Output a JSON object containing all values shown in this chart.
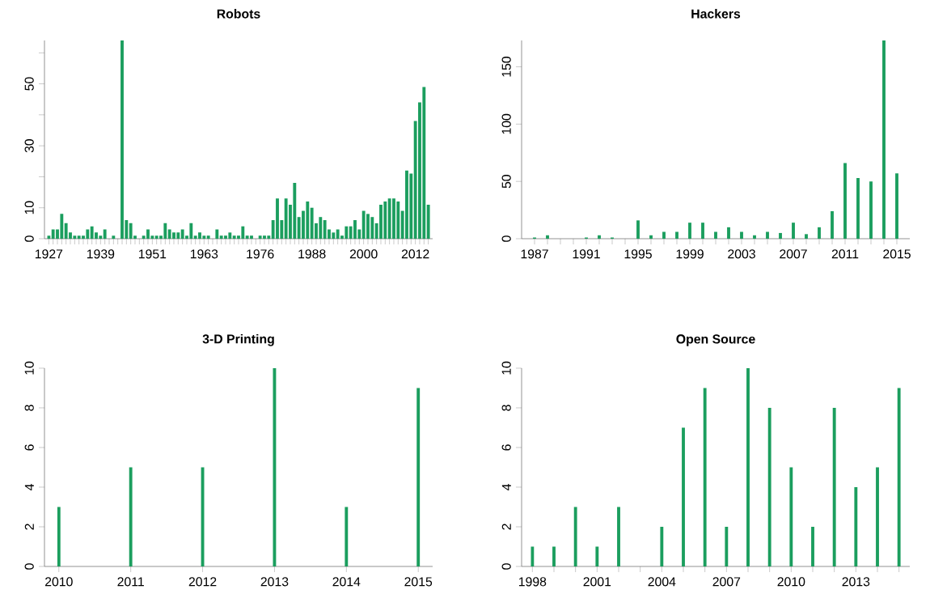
{
  "chart_data": [
    {
      "type": "bar",
      "title": "Robots",
      "color": "#1b9e5e",
      "x": [
        1927,
        1928,
        1929,
        1930,
        1931,
        1932,
        1933,
        1934,
        1935,
        1936,
        1937,
        1938,
        1939,
        1940,
        1942,
        1944,
        1945,
        1946,
        1947,
        1949,
        1950,
        1951,
        1952,
        1953,
        1954,
        1955,
        1956,
        1957,
        1958,
        1959,
        1960,
        1961,
        1962,
        1963,
        1964,
        1966,
        1967,
        1968,
        1969,
        1970,
        1971,
        1972,
        1973,
        1974,
        1976,
        1977,
        1978,
        1979,
        1980,
        1981,
        1982,
        1983,
        1984,
        1985,
        1986,
        1987,
        1988,
        1989,
        1990,
        1991,
        1992,
        1993,
        1994,
        1995,
        1996,
        1997,
        1998,
        1999,
        2000,
        2001,
        2002,
        2003,
        2004,
        2005,
        2006,
        2007,
        2008,
        2009,
        2010,
        2011,
        2012,
        2013,
        2014,
        2015
      ],
      "values": [
        1,
        3,
        3,
        8,
        5,
        2,
        1,
        1,
        1,
        3,
        4,
        2,
        1,
        3,
        1,
        64,
        6,
        5,
        1,
        1,
        3,
        1,
        1,
        1,
        5,
        3,
        2,
        2,
        3,
        1,
        5,
        1,
        2,
        1,
        1,
        3,
        1,
        1,
        2,
        1,
        1,
        4,
        1,
        1,
        1,
        1,
        1,
        6,
        13,
        6,
        13,
        11,
        18,
        7,
        9,
        12,
        10,
        5,
        7,
        6,
        3,
        2,
        3,
        1,
        4,
        4,
        6,
        3,
        9,
        8,
        7,
        5,
        11,
        12,
        13,
        13,
        12,
        9,
        22,
        21,
        38,
        44,
        49,
        11
      ],
      "xlim": [
        1926,
        2016
      ],
      "ylim": [
        0,
        64
      ],
      "xticks": [
        1927,
        {
          "value": 1928,
          "label": null
        },
        {
          "value": 1929,
          "label": null
        },
        {
          "value": 1930,
          "label": null
        },
        {
          "value": 1931,
          "label": null
        },
        {
          "value": 1932,
          "label": null
        },
        {
          "value": 1933,
          "label": null
        },
        {
          "value": 1934,
          "label": null
        },
        {
          "value": 1935,
          "label": null
        },
        {
          "value": 1936,
          "label": null
        },
        {
          "value": 1937,
          "label": null
        },
        {
          "value": 1938,
          "label": null
        },
        1939,
        {
          "value": 1940,
          "label": null
        },
        {
          "value": 1941,
          "label": null
        },
        {
          "value": 1942,
          "label": null
        },
        {
          "value": 1943,
          "label": null
        },
        {
          "value": 1944,
          "label": null
        },
        {
          "value": 1945,
          "label": null
        },
        {
          "value": 1946,
          "label": null
        },
        {
          "value": 1947,
          "label": null
        },
        {
          "value": 1948,
          "label": null
        },
        {
          "value": 1949,
          "label": null
        },
        {
          "value": 1950,
          "label": null
        },
        1951,
        {
          "value": 1952,
          "label": null
        },
        {
          "value": 1953,
          "label": null
        },
        {
          "value": 1954,
          "label": null
        },
        {
          "value": 1955,
          "label": null
        },
        {
          "value": 1956,
          "label": null
        },
        {
          "value": 1957,
          "label": null
        },
        {
          "value": 1958,
          "label": null
        },
        {
          "value": 1959,
          "label": null
        },
        {
          "value": 1960,
          "label": null
        },
        {
          "value": 1961,
          "label": null
        },
        {
          "value": 1962,
          "label": null
        },
        1963,
        {
          "value": 1964,
          "label": null
        },
        {
          "value": 1965,
          "label": null
        },
        {
          "value": 1966,
          "label": null
        },
        {
          "value": 1967,
          "label": null
        },
        {
          "value": 1968,
          "label": null
        },
        {
          "value": 1969,
          "label": null
        },
        {
          "value": 1970,
          "label": null
        },
        {
          "value": 1971,
          "label": null
        },
        {
          "value": 1972,
          "label": null
        },
        {
          "value": 1973,
          "label": null
        },
        {
          "value": 1974,
          "label": null
        },
        {
          "value": 1975,
          "label": null
        },
        1976,
        {
          "value": 1977,
          "label": null
        },
        {
          "value": 1978,
          "label": null
        },
        {
          "value": 1979,
          "label": null
        },
        {
          "value": 1980,
          "label": null
        },
        {
          "value": 1981,
          "label": null
        },
        {
          "value": 1982,
          "label": null
        },
        {
          "value": 1983,
          "label": null
        },
        {
          "value": 1984,
          "label": null
        },
        {
          "value": 1985,
          "label": null
        },
        {
          "value": 1986,
          "label": null
        },
        {
          "value": 1987,
          "label": null
        },
        1988,
        {
          "value": 1989,
          "label": null
        },
        {
          "value": 1990,
          "label": null
        },
        {
          "value": 1991,
          "label": null
        },
        {
          "value": 1992,
          "label": null
        },
        {
          "value": 1993,
          "label": null
        },
        {
          "value": 1994,
          "label": null
        },
        {
          "value": 1995,
          "label": null
        },
        {
          "value": 1996,
          "label": null
        },
        {
          "value": 1997,
          "label": null
        },
        {
          "value": 1998,
          "label": null
        },
        {
          "value": 1999,
          "label": null
        },
        2000,
        {
          "value": 2001,
          "label": null
        },
        {
          "value": 2002,
          "label": null
        },
        {
          "value": 2003,
          "label": null
        },
        {
          "value": 2004,
          "label": null
        },
        {
          "value": 2005,
          "label": null
        },
        {
          "value": 2006,
          "label": null
        },
        {
          "value": 2007,
          "label": null
        },
        {
          "value": 2008,
          "label": null
        },
        {
          "value": 2009,
          "label": null
        },
        {
          "value": 2010,
          "label": null
        },
        {
          "value": 2011,
          "label": null
        },
        2012,
        {
          "value": 2013,
          "label": null
        },
        {
          "value": 2014,
          "label": null
        },
        {
          "value": 2015,
          "label": null
        }
      ],
      "yticks": [
        0,
        10,
        {
          "value": 20,
          "label": null
        },
        30,
        {
          "value": 40,
          "label": null
        },
        50,
        {
          "value": 60,
          "label": null
        }
      ]
    },
    {
      "type": "bar",
      "title": "Hackers",
      "color": "#1b9e5e",
      "x": [
        1987,
        1988,
        1991,
        1992,
        1993,
        1995,
        1996,
        1997,
        1998,
        1999,
        2000,
        2001,
        2002,
        2003,
        2004,
        2005,
        2006,
        2007,
        2008,
        2009,
        2010,
        2011,
        2012,
        2013,
        2014,
        2015
      ],
      "values": [
        1,
        3,
        1,
        3,
        1,
        16,
        3,
        6,
        6,
        14,
        14,
        6,
        10,
        6,
        3,
        6,
        5,
        14,
        4,
        10,
        24,
        66,
        53,
        50,
        173,
        57
      ],
      "xlim": [
        1986,
        2016
      ],
      "ylim": [
        0,
        173
      ],
      "xticks": [
        1987,
        {
          "value": 1988,
          "label": null
        },
        {
          "value": 1989,
          "label": null
        },
        {
          "value": 1990,
          "label": null
        },
        1991,
        {
          "value": 1992,
          "label": null
        },
        {
          "value": 1993,
          "label": null
        },
        {
          "value": 1994,
          "label": null
        },
        1995,
        {
          "value": 1996,
          "label": null
        },
        {
          "value": 1997,
          "label": null
        },
        {
          "value": 1998,
          "label": null
        },
        1999,
        {
          "value": 2000,
          "label": null
        },
        {
          "value": 2001,
          "label": null
        },
        {
          "value": 2002,
          "label": null
        },
        2003,
        {
          "value": 2004,
          "label": null
        },
        {
          "value": 2005,
          "label": null
        },
        {
          "value": 2006,
          "label": null
        },
        2007,
        {
          "value": 2008,
          "label": null
        },
        {
          "value": 2009,
          "label": null
        },
        {
          "value": 2010,
          "label": null
        },
        2011,
        {
          "value": 2012,
          "label": null
        },
        {
          "value": 2013,
          "label": null
        },
        {
          "value": 2014,
          "label": null
        },
        2015
      ],
      "yticks": [
        0,
        50,
        100,
        150
      ]
    },
    {
      "type": "bar",
      "title": "3-D Printing",
      "color": "#1b9e5e",
      "x": [
        2010,
        2011,
        2012,
        2013,
        2014,
        2015
      ],
      "values": [
        3,
        5,
        5,
        10,
        3,
        9
      ],
      "xlim": [
        2009.8,
        2015.2
      ],
      "ylim": [
        0,
        10
      ],
      "xticks": [
        2010,
        2011,
        2012,
        2013,
        2014,
        2015
      ],
      "yticks": [
        0,
        2,
        4,
        6,
        8,
        10
      ]
    },
    {
      "type": "bar",
      "title": "Open Source",
      "color": "#1b9e5e",
      "x": [
        1998,
        1999,
        2000,
        2001,
        2002,
        2004,
        2005,
        2006,
        2007,
        2008,
        2009,
        2010,
        2011,
        2012,
        2013,
        2014,
        2015
      ],
      "values": [
        1,
        1,
        3,
        1,
        3,
        2,
        7,
        9,
        2,
        10,
        8,
        5,
        2,
        8,
        4,
        5,
        9
      ],
      "xlim": [
        1997.5,
        2015.5
      ],
      "ylim": [
        0,
        10
      ],
      "xticks": [
        1998,
        {
          "value": 1999,
          "label": null
        },
        {
          "value": 2000,
          "label": null
        },
        2001,
        {
          "value": 2002,
          "label": null
        },
        {
          "value": 2003,
          "label": null
        },
        2004,
        {
          "value": 2005,
          "label": null
        },
        {
          "value": 2006,
          "label": null
        },
        2007,
        {
          "value": 2008,
          "label": null
        },
        {
          "value": 2009,
          "label": null
        },
        2010,
        {
          "value": 2011,
          "label": null
        },
        {
          "value": 2012,
          "label": null
        },
        2013,
        {
          "value": 2014,
          "label": null
        },
        {
          "value": 2015,
          "label": null
        }
      ],
      "yticks": [
        0,
        2,
        4,
        6,
        8,
        10
      ]
    }
  ]
}
